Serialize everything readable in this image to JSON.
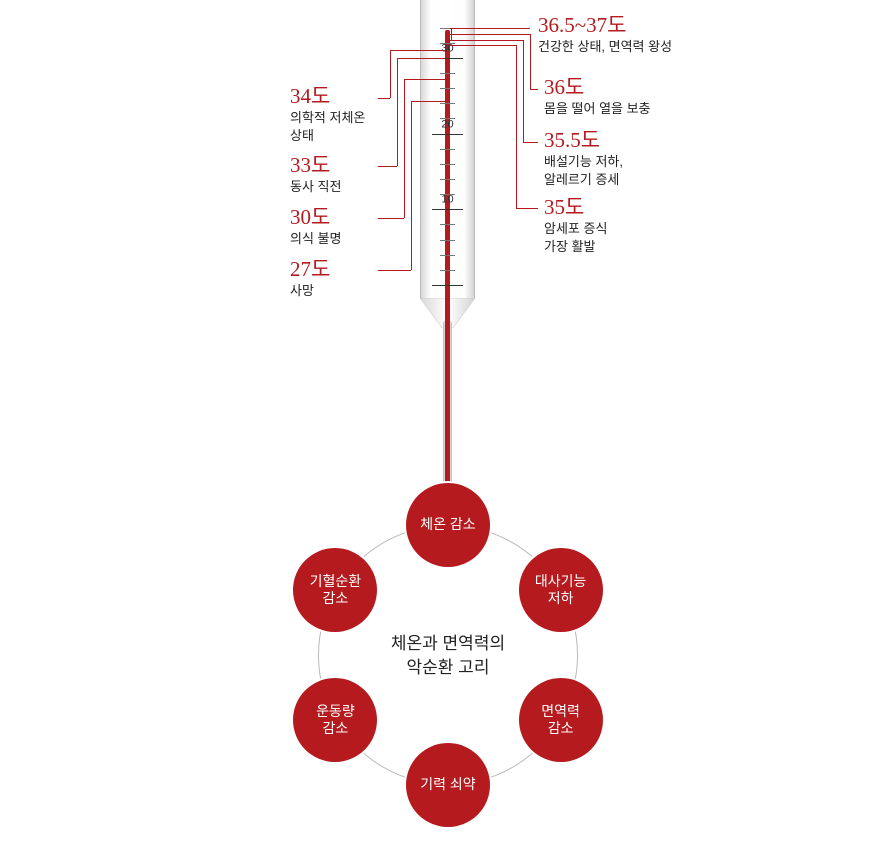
{
  "colors": {
    "accent": "#b51a1e",
    "text": "#222222",
    "background": "#ffffff",
    "glass_edge": "#bcbcbc",
    "tick": "#333333",
    "ring": "#b9b9b9"
  },
  "thermometer": {
    "scale": {
      "min": 0,
      "max": 35,
      "major_step": 10,
      "minor_step": 2,
      "majors": [
        0,
        10,
        20,
        30
      ],
      "labels": [
        "10",
        "20",
        "30"
      ]
    },
    "right_labels": [
      {
        "value": "36.5~37도",
        "desc": "건강한 상태, 면역력 왕성"
      },
      {
        "value": "36도",
        "desc": "몸을 떨어 열을 보충"
      },
      {
        "value": "35.5도",
        "desc": "배설기능 저하,\n알레르기 증세"
      },
      {
        "value": "35도",
        "desc": "암세포 증식\n가장 활발"
      }
    ],
    "left_labels": [
      {
        "value": "34도",
        "desc": "의학적 저체온\n상태"
      },
      {
        "value": "33도",
        "desc": "동사 직전"
      },
      {
        "value": "30도",
        "desc": "의식 불명"
      },
      {
        "value": "27도",
        "desc": "사망"
      }
    ]
  },
  "cycle": {
    "title_line1": "체온과 면역력의",
    "title_line2": "악순환 고리",
    "nodes": [
      "체온 감소",
      "대사기능\n저하",
      "면역력\n감소",
      "기력 쇠약",
      "운동량\n감소",
      "기혈순환\n감소"
    ]
  }
}
